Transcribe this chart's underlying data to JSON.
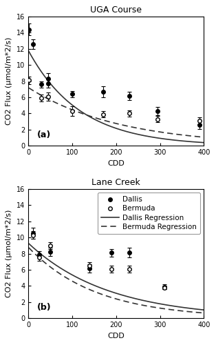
{
  "title_a": "UGA Course",
  "title_b": "Lane Creek",
  "ylabel": "CO2 Flux (μmol/m*2/s)",
  "xlabel": "CDD",
  "panel_a_label": "(a)",
  "panel_b_label": "(b)",
  "uga_dallis_x": [
    2,
    10,
    30,
    45,
    45,
    100,
    170,
    230,
    295,
    390
  ],
  "uga_dallis_y": [
    14.4,
    12.6,
    7.6,
    8.3,
    7.7,
    6.4,
    6.7,
    6.2,
    4.3,
    2.6
  ],
  "uga_dallis_yerr": [
    0.7,
    0.6,
    0.4,
    0.7,
    0.5,
    0.4,
    0.7,
    0.5,
    0.5,
    0.5
  ],
  "uga_bermuda_x": [
    2,
    30,
    45,
    100,
    170,
    230,
    295,
    390
  ],
  "uga_bermuda_y": [
    8.1,
    5.9,
    6.1,
    4.3,
    3.9,
    4.0,
    3.3,
    3.1
  ],
  "uga_bermuda_yerr": [
    0.5,
    0.4,
    0.5,
    0.6,
    0.4,
    0.4,
    0.4,
    0.4
  ],
  "lane_dallis_x": [
    10,
    25,
    50,
    140,
    190,
    230,
    310
  ],
  "lane_dallis_y": [
    10.5,
    7.9,
    8.2,
    6.2,
    8.1,
    8.1,
    3.9
  ],
  "lane_dallis_yerr": [
    0.7,
    0.4,
    0.5,
    0.5,
    0.5,
    0.6,
    0.3
  ],
  "lane_bermuda_x": [
    10,
    25,
    50,
    140,
    190,
    230,
    310
  ],
  "lane_bermuda_y": [
    10.3,
    7.5,
    9.0,
    6.5,
    6.1,
    6.1,
    3.8
  ],
  "lane_bermuda_yerr": [
    0.5,
    0.4,
    0.4,
    0.4,
    0.4,
    0.4,
    0.2
  ],
  "ylim": [
    0,
    16
  ],
  "yticks": [
    0,
    2,
    4,
    6,
    8,
    10,
    12,
    14,
    16
  ],
  "xlim_a": [
    0,
    400
  ],
  "xticks_a": [
    0,
    100,
    200,
    300,
    400
  ],
  "xlim_b": [
    0,
    400
  ],
  "xticks_b": [
    0,
    100,
    200,
    300,
    400
  ],
  "dallis_color": "#000000",
  "bermuda_color": "#000000",
  "line_color": "#333333",
  "legend_labels": [
    "Dallis",
    "Bermuda",
    "Dallis Regression",
    "Bermuda Regression"
  ],
  "uga_dallis_reg_a": 11.8,
  "uga_dallis_reg_b": -0.0085,
  "uga_bermuda_reg_a": 7.2,
  "uga_bermuda_reg_b": -0.0048,
  "lane_dallis_reg_a": 9.3,
  "lane_dallis_reg_b": -0.0055,
  "lane_bermuda_reg_a": 8.8,
  "lane_bermuda_reg_b": -0.0065,
  "background_color": "#ffffff",
  "title_fontsize": 9,
  "label_fontsize": 8,
  "tick_fontsize": 7,
  "legend_fontsize": 7.5
}
